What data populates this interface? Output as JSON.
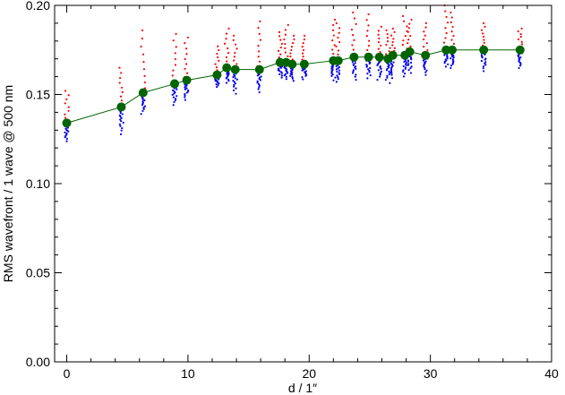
{
  "chart_data": {
    "type": "scatter",
    "title": "",
    "xlabel": "d / 1″",
    "ylabel": "RMS wavefront / 1 wave @ 500 nm",
    "xlim": [
      -1,
      40
    ],
    "ylim": [
      0.0,
      0.2
    ],
    "x_ticks": [
      0,
      10,
      20,
      30,
      40
    ],
    "x_tick_labels": [
      "0",
      "10",
      "20",
      "30",
      "40"
    ],
    "y_ticks": [
      0.0,
      0.05,
      0.1,
      0.15,
      0.2
    ],
    "y_tick_labels": [
      "0.00",
      "0.05",
      "0.10",
      "0.15",
      "0.20"
    ],
    "grid": false,
    "colors": {
      "red": "#ff0000",
      "blue": "#0000ee",
      "mean": "#006400",
      "line": "#006400"
    },
    "series": [
      {
        "role": "mean-line-with-markers",
        "x": [
          0.0,
          4.5,
          6.3,
          8.9,
          9.9,
          12.4,
          13.2,
          13.9,
          15.9,
          17.6,
          18.1,
          18.6,
          19.6,
          22.0,
          22.4,
          23.7,
          24.9,
          25.8,
          26.5,
          26.9,
          27.9,
          28.3,
          29.6,
          31.3,
          31.8,
          34.4,
          37.4
        ],
        "y": [
          0.134,
          0.143,
          0.151,
          0.156,
          0.158,
          0.161,
          0.165,
          0.164,
          0.164,
          0.168,
          0.168,
          0.167,
          0.167,
          0.169,
          0.169,
          0.171,
          0.171,
          0.171,
          0.17,
          0.172,
          0.172,
          0.174,
          0.172,
          0.175,
          0.175,
          0.175,
          0.175
        ],
        "red_max": [
          0.152,
          0.165,
          0.186,
          0.184,
          0.182,
          0.177,
          0.187,
          0.183,
          0.191,
          0.185,
          0.189,
          0.183,
          0.183,
          0.192,
          0.19,
          0.196,
          0.195,
          0.188,
          0.186,
          0.187,
          0.194,
          0.192,
          0.19,
          0.2,
          0.196,
          0.19,
          0.187
        ],
        "blue_min": [
          0.122,
          0.125,
          0.137,
          0.142,
          0.145,
          0.153,
          0.155,
          0.148,
          0.149,
          0.158,
          0.157,
          0.156,
          0.157,
          0.156,
          0.155,
          0.156,
          0.157,
          0.156,
          0.154,
          0.157,
          0.158,
          0.16,
          0.159,
          0.164,
          0.163,
          0.161,
          0.163
        ]
      }
    ]
  }
}
